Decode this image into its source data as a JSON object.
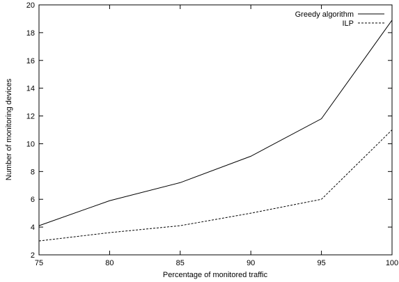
{
  "chart_data": {
    "type": "line",
    "title": "",
    "xlabel": "Percentage of monitored traffic",
    "ylabel": "Number of monitoring devices",
    "xlim": [
      75,
      100
    ],
    "ylim": [
      2,
      20
    ],
    "xticks": [
      75,
      80,
      85,
      90,
      95,
      100
    ],
    "yticks": [
      2,
      4,
      6,
      8,
      10,
      12,
      14,
      16,
      18,
      20
    ],
    "grid": false,
    "legend_position": "top-right",
    "x": [
      75,
      80,
      85,
      90,
      95,
      100
    ],
    "series": [
      {
        "name": "Greedy algorithm",
        "style": "solid",
        "values": [
          4.1,
          5.9,
          7.2,
          9.1,
          11.8,
          18.9
        ]
      },
      {
        "name": "ILP",
        "style": "dashed",
        "values": [
          3.0,
          3.6,
          4.1,
          5.0,
          6.0,
          11.0
        ]
      }
    ]
  }
}
